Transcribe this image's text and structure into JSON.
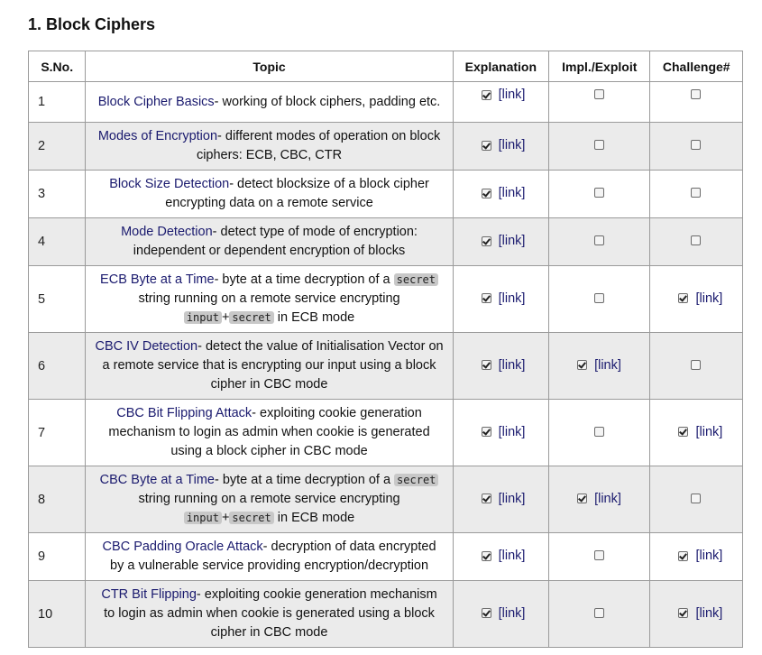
{
  "heading": "1. Block Ciphers",
  "columns": {
    "sno": "S.No.",
    "topic": "Topic",
    "explanation": "Explanation",
    "impl": "Impl./Exploit",
    "challenge": "Challenge#"
  },
  "link_text": "[link]",
  "rows": [
    {
      "sno": "1",
      "title": "Block Cipher Basics",
      "desc": "- working of block ciphers, padding etc.",
      "explanation": true,
      "impl": false,
      "challenge": false
    },
    {
      "sno": "2",
      "title": "Modes of Encryption",
      "desc": "- different modes of operation on block ciphers: ECB, CBC, CTR",
      "explanation": true,
      "impl": false,
      "challenge": false
    },
    {
      "sno": "3",
      "title": "Block Size Detection",
      "desc": "- detect blocksize of a block cipher encrypting data on a remote service",
      "explanation": true,
      "impl": false,
      "challenge": false
    },
    {
      "sno": "4",
      "title": "Mode Detection",
      "desc": "- detect type of mode of encryption: independent or dependent encryption of blocks",
      "explanation": true,
      "impl": false,
      "challenge": false
    },
    {
      "sno": "5",
      "title": "ECB Byte at a Time",
      "desc_a": "- byte at a time decryption of a ",
      "code1": "secret",
      "desc_b": " string running on a remote service encrypting ",
      "code2": "input",
      "plus": "+",
      "code3": "secret",
      "desc_c": " in ECB mode",
      "explanation": true,
      "impl": false,
      "challenge": true
    },
    {
      "sno": "6",
      "title": "CBC IV Detection",
      "desc": "- detect the value of Initialisation Vector on a remote service that is encrypting our input using a block cipher in CBC mode",
      "explanation": true,
      "impl": true,
      "challenge": false
    },
    {
      "sno": "7",
      "title": "CBC Bit Flipping Attack",
      "desc": "- exploiting cookie generation mechanism to login as admin when cookie is generated using a block cipher in CBC mode",
      "explanation": true,
      "impl": false,
      "challenge": true
    },
    {
      "sno": "8",
      "title": "CBC Byte at a Time",
      "desc_a": "- byte at a time decryption of a ",
      "code1": "secret",
      "desc_b": " string running on a remote service encrypting ",
      "code2": "input",
      "plus": "+",
      "code3": "secret",
      "desc_c": " in ECB mode",
      "explanation": true,
      "impl": true,
      "challenge": false
    },
    {
      "sno": "9",
      "title": "CBC Padding Oracle Attack",
      "desc": "- decryption of data encrypted by a vulnerable service providing encryption/decryption",
      "explanation": true,
      "impl": false,
      "challenge": true
    },
    {
      "sno": "10",
      "title": "CTR Bit Flipping",
      "desc": "- exploiting cookie generation mechanism to login as admin when cookie is generated using a block cipher in CBC mode",
      "explanation": true,
      "impl": false,
      "challenge": true
    }
  ]
}
